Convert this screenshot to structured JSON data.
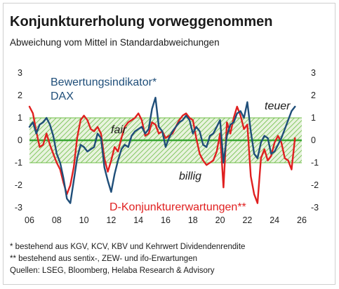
{
  "title": "Konjunkturerholung vorweggenommen",
  "subtitle": "Abweichung vom Mittel in Standardabweichungen",
  "footnotes": [
    "* bestehend aus KGV, KCV, KBV und Kehrwert Dividendenrendite",
    "** bestehend aus sentix-, ZEW- und ifo-Erwartungen",
    "Quellen: LSEG, Bloomberg, Helaba Research & Advisory"
  ],
  "colors": {
    "valuation": "#1f4e79",
    "expectations": "#e02020",
    "zero_line": "#3aa635",
    "band": "#6cbd45"
  },
  "chart_data": {
    "type": "line",
    "title": "Konjunkturerholung vorweggenommen",
    "ylabel": "Abweichung vom Mittel in Standardabweichungen",
    "xlim": [
      2006,
      2026
    ],
    "ylim": [
      -3,
      3
    ],
    "x_ticks": [
      "06",
      "08",
      "10",
      "12",
      "14",
      "16",
      "18",
      "20",
      "22",
      "24",
      "26"
    ],
    "y_ticks_left": [
      "3",
      "2",
      "1",
      "0",
      "-1",
      "-2",
      "-3"
    ],
    "y_ticks_right": [
      "3",
      "2",
      "1",
      "0",
      "-1",
      "-2",
      "-3"
    ],
    "band": {
      "from": -1,
      "to": 1
    },
    "annotations": {
      "fair": "fair",
      "teuer": "teuer",
      "billig": "billig"
    },
    "series": [
      {
        "name": "Bewertungsindikator* DAX",
        "label_lines": [
          "Bewertungsindikator*",
          "DAX"
        ],
        "x": [
          2006.0,
          2006.25,
          2006.5,
          2006.75,
          2007.0,
          2007.25,
          2007.5,
          2007.75,
          2008.0,
          2008.25,
          2008.5,
          2008.75,
          2009.0,
          2009.25,
          2009.5,
          2009.75,
          2010.0,
          2010.25,
          2010.5,
          2010.75,
          2011.0,
          2011.25,
          2011.5,
          2011.75,
          2012.0,
          2012.25,
          2012.5,
          2012.75,
          2013.0,
          2013.25,
          2013.5,
          2013.75,
          2014.0,
          2014.25,
          2014.5,
          2014.75,
          2015.0,
          2015.25,
          2015.5,
          2015.75,
          2016.0,
          2016.25,
          2016.5,
          2016.75,
          2017.0,
          2017.25,
          2017.5,
          2017.75,
          2018.0,
          2018.25,
          2018.5,
          2018.75,
          2019.0,
          2019.25,
          2019.5,
          2019.75,
          2020.0,
          2020.25,
          2020.5,
          2020.75,
          2021.0,
          2021.25,
          2021.5,
          2021.75,
          2022.0,
          2022.25,
          2022.5,
          2022.75,
          2023.0,
          2023.25,
          2023.5,
          2023.75,
          2024.0,
          2024.25,
          2024.5,
          2024.75,
          2025.0,
          2025.25,
          2025.5
        ],
        "values": [
          0.6,
          0.8,
          0.3,
          0.7,
          0.8,
          1.0,
          0.7,
          0.2,
          -0.6,
          -1.0,
          -1.7,
          -2.6,
          -2.8,
          -1.8,
          -0.8,
          -0.2,
          -0.3,
          -0.5,
          -0.4,
          -0.3,
          0.3,
          0.1,
          -1.2,
          -1.8,
          -2.3,
          -1.5,
          -0.9,
          -0.4,
          -0.2,
          -0.3,
          0.2,
          0.4,
          0.5,
          0.6,
          0.3,
          0.5,
          1.4,
          1.9,
          0.6,
          0.4,
          -0.3,
          0.1,
          0.4,
          0.6,
          0.8,
          0.9,
          1.1,
          0.9,
          0.3,
          0.6,
          0.4,
          -0.2,
          -0.3,
          0.2,
          0.3,
          0.6,
          0.9,
          -1.0,
          0.2,
          0.7,
          0.8,
          1.2,
          1.3,
          1.0,
          1.7,
          0.4,
          -0.6,
          -0.8,
          -0.1,
          0.2,
          0.1,
          -0.6,
          -0.5,
          -0.2,
          0.1,
          0.5,
          0.9,
          1.3,
          1.5
        ]
      },
      {
        "name": "D-Konjunkturerwartungen**",
        "label_lines": [
          "D-Konjunkturerwartungen**"
        ],
        "x": [
          2006.0,
          2006.25,
          2006.5,
          2006.75,
          2007.0,
          2007.25,
          2007.5,
          2007.75,
          2008.0,
          2008.25,
          2008.5,
          2008.75,
          2009.0,
          2009.25,
          2009.5,
          2009.75,
          2010.0,
          2010.25,
          2010.5,
          2010.75,
          2011.0,
          2011.25,
          2011.5,
          2011.75,
          2012.0,
          2012.25,
          2012.5,
          2012.75,
          2013.0,
          2013.25,
          2013.5,
          2013.75,
          2014.0,
          2014.25,
          2014.5,
          2014.75,
          2015.0,
          2015.25,
          2015.5,
          2015.75,
          2016.0,
          2016.25,
          2016.5,
          2016.75,
          2017.0,
          2017.25,
          2017.5,
          2017.75,
          2018.0,
          2018.25,
          2018.5,
          2018.75,
          2019.0,
          2019.25,
          2019.5,
          2019.75,
          2020.0,
          2020.25,
          2020.5,
          2020.75,
          2021.0,
          2021.25,
          2021.5,
          2021.75,
          2022.0,
          2022.25,
          2022.5,
          2022.75,
          2023.0,
          2023.25,
          2023.5,
          2023.75,
          2024.0,
          2024.25,
          2024.5,
          2024.75,
          2025.0,
          2025.25,
          2025.5
        ],
        "values": [
          1.5,
          1.2,
          0.4,
          -0.3,
          -0.2,
          0.3,
          -0.2,
          -0.6,
          -1.0,
          -1.3,
          -1.9,
          -2.4,
          -2.0,
          -1.2,
          0.1,
          0.9,
          1.1,
          0.9,
          0.5,
          0.4,
          0.6,
          0.3,
          -0.8,
          -1.4,
          -0.9,
          -0.3,
          -0.5,
          0.1,
          0.6,
          0.8,
          0.9,
          1.0,
          1.2,
          0.9,
          0.2,
          0.3,
          0.8,
          0.7,
          0.3,
          0.4,
          0.1,
          0.2,
          0.3,
          0.6,
          0.9,
          1.1,
          1.2,
          1.0,
          0.9,
          0.1,
          -0.6,
          -0.9,
          -1.1,
          -1.0,
          -0.9,
          -0.5,
          0.3,
          -2.1,
          0.8,
          0.3,
          1.0,
          1.5,
          1.1,
          0.5,
          0.7,
          -1.6,
          -2.4,
          -2.8,
          -0.8,
          -0.4,
          -0.9,
          -0.7,
          -0.1,
          0.2,
          -0.1,
          -0.8,
          -0.9,
          -1.3,
          0.1
        ]
      }
    ]
  }
}
